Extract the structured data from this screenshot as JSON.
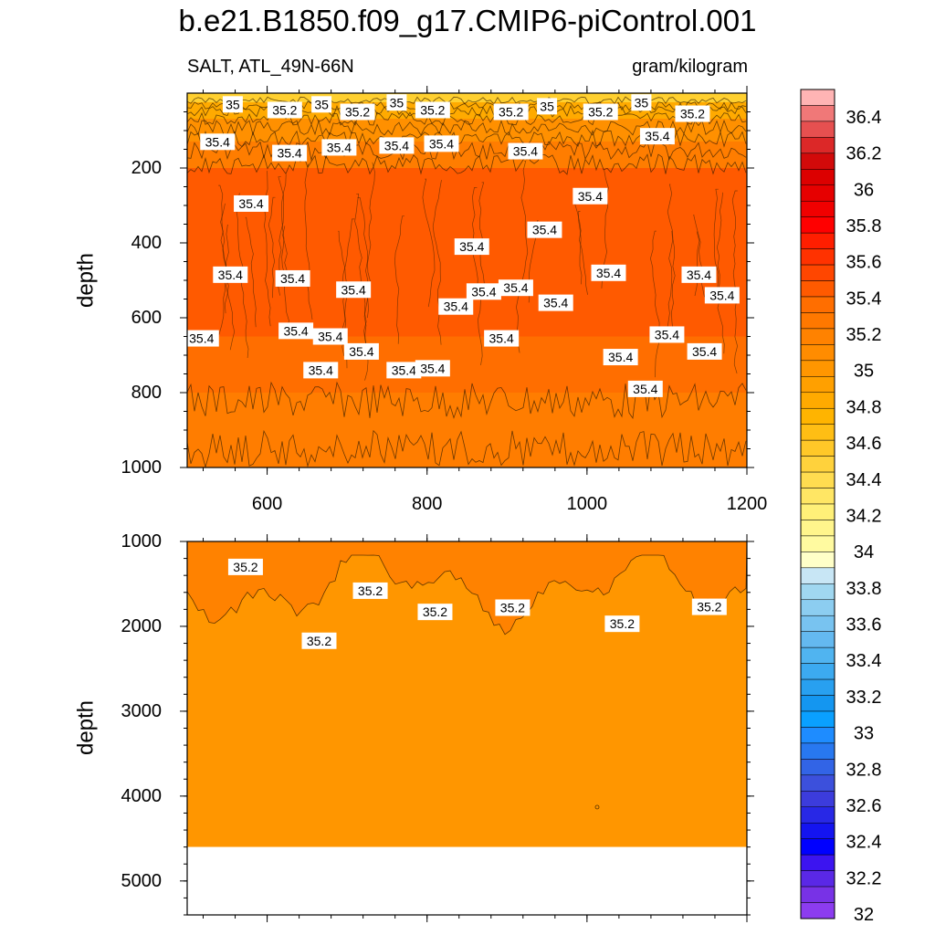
{
  "title": "b.e21.B1850.f09_g17.CMIP6-piControl.001",
  "left_subtitle": "SALT, ATL_49N-66N",
  "right_subtitle": "gram/kilogram",
  "chart_data": [
    {
      "type": "heatmap",
      "panel": "upper",
      "ylabel": "depth",
      "xlim": [
        500,
        1200
      ],
      "ylim": [
        1000,
        0
      ],
      "x_ticks": [
        "600",
        "800",
        "1000",
        "1200"
      ],
      "y_ticks": [
        "200",
        "400",
        "600",
        "800",
        "1000"
      ],
      "contour_labels": [
        {
          "text": "35",
          "x": 557,
          "y": 30
        },
        {
          "text": "35.2",
          "x": 622,
          "y": 45
        },
        {
          "text": "35",
          "x": 668,
          "y": 30
        },
        {
          "text": "35.2",
          "x": 713,
          "y": 50
        },
        {
          "text": "35",
          "x": 762,
          "y": 25
        },
        {
          "text": "35.2",
          "x": 807,
          "y": 45
        },
        {
          "text": "35.2",
          "x": 905,
          "y": 50
        },
        {
          "text": "35",
          "x": 950,
          "y": 35
        },
        {
          "text": "35.2",
          "x": 1017,
          "y": 50
        },
        {
          "text": "35",
          "x": 1068,
          "y": 25
        },
        {
          "text": "35.2",
          "x": 1132,
          "y": 55
        },
        {
          "text": "35.4",
          "x": 538,
          "y": 130
        },
        {
          "text": "35.4",
          "x": 628,
          "y": 160
        },
        {
          "text": "35.4",
          "x": 690,
          "y": 145
        },
        {
          "text": "35.4",
          "x": 762,
          "y": 140
        },
        {
          "text": "35.4",
          "x": 818,
          "y": 135
        },
        {
          "text": "35.4",
          "x": 923,
          "y": 155
        },
        {
          "text": "35.4",
          "x": 1088,
          "y": 115
        },
        {
          "text": "35.4",
          "x": 1004,
          "y": 275
        },
        {
          "text": "35.4",
          "x": 580,
          "y": 295
        },
        {
          "text": "35.4",
          "x": 856,
          "y": 410
        },
        {
          "text": "35.4",
          "x": 947,
          "y": 365
        },
        {
          "text": "35.4",
          "x": 554,
          "y": 485
        },
        {
          "text": "35.4",
          "x": 632,
          "y": 495
        },
        {
          "text": "35.4",
          "x": 1027,
          "y": 480
        },
        {
          "text": "35.4",
          "x": 1140,
          "y": 485
        },
        {
          "text": "35.4",
          "x": 708,
          "y": 525
        },
        {
          "text": "35.4",
          "x": 836,
          "y": 570
        },
        {
          "text": "35.4",
          "x": 871,
          "y": 530
        },
        {
          "text": "35.4",
          "x": 911,
          "y": 520
        },
        {
          "text": "35.4",
          "x": 961,
          "y": 560
        },
        {
          "text": "35.4",
          "x": 1169,
          "y": 540
        },
        {
          "text": "35.4",
          "x": 518,
          "y": 655
        },
        {
          "text": "35.4",
          "x": 636,
          "y": 635
        },
        {
          "text": "35.4",
          "x": 679,
          "y": 650
        },
        {
          "text": "35.4",
          "x": 893,
          "y": 655
        },
        {
          "text": "35.4",
          "x": 1100,
          "y": 645
        },
        {
          "text": "35.4",
          "x": 718,
          "y": 690
        },
        {
          "text": "35.4",
          "x": 1147,
          "y": 690
        },
        {
          "text": "35.4",
          "x": 1042,
          "y": 705
        },
        {
          "text": "35.4",
          "x": 771,
          "y": 740
        },
        {
          "text": "35.4",
          "x": 807,
          "y": 735
        },
        {
          "text": "35.4",
          "x": 667,
          "y": 740
        },
        {
          "text": "35.4",
          "x": 1073,
          "y": 790
        }
      ]
    },
    {
      "type": "heatmap",
      "panel": "lower",
      "ylabel": "depth",
      "ylim": [
        5400,
        1000
      ],
      "y_ticks": [
        "1000",
        "2000",
        "3000",
        "4000",
        "5000"
      ],
      "contour_labels": [
        {
          "text": "35.2",
          "x": 573,
          "y": 1300
        },
        {
          "text": "35.2",
          "x": 729,
          "y": 1580
        },
        {
          "text": "35.2",
          "x": 665,
          "y": 2170
        },
        {
          "text": "35.2",
          "x": 810,
          "y": 1830
        },
        {
          "text": "35.2",
          "x": 907,
          "y": 1780
        },
        {
          "text": "35.2",
          "x": 1044,
          "y": 1970
        },
        {
          "text": "35.2",
          "x": 1153,
          "y": 1770
        }
      ]
    }
  ],
  "colorbar": {
    "labels": [
      "36.4",
      "36.2",
      "36",
      "35.8",
      "35.6",
      "35.4",
      "35.2",
      "35",
      "34.8",
      "34.6",
      "34.4",
      "34.2",
      "34",
      "33.8",
      "33.6",
      "33.4",
      "33.2",
      "33",
      "32.8",
      "32.6",
      "32.4",
      "32.2",
      "32"
    ],
    "colors": [
      "#ffb4b4",
      "#f07878",
      "#e65050",
      "#dc2828",
      "#d20a0a",
      "#dc0000",
      "#e60000",
      "#f00000",
      "#ff0000",
      "#ff1e00",
      "#ff3200",
      "#ff4600",
      "#ff5a00",
      "#ff6e00",
      "#ff7800",
      "#ff8200",
      "#ff8c00",
      "#ff9600",
      "#ffa000",
      "#ffaa00",
      "#ffb400",
      "#ffbe14",
      "#ffc828",
      "#ffd23c",
      "#ffdc50",
      "#ffe664",
      "#fff078",
      "#fff58c",
      "#fffaa0",
      "#ffffc8",
      "#c8e6f5",
      "#a0d7f0",
      "#8ccdf0",
      "#78c3f0",
      "#64b9f0",
      "#50b4f0",
      "#3caaf0",
      "#28a0f0",
      "#1496f0",
      "#0aa0ff",
      "#1e8cff",
      "#2878f0",
      "#3264e6",
      "#3c50dc",
      "#3c3cdc",
      "#2828e6",
      "#1414f0",
      "#0000ff",
      "#3c14f0",
      "#5a28e6",
      "#7832e6",
      "#8c3cf0"
    ]
  }
}
